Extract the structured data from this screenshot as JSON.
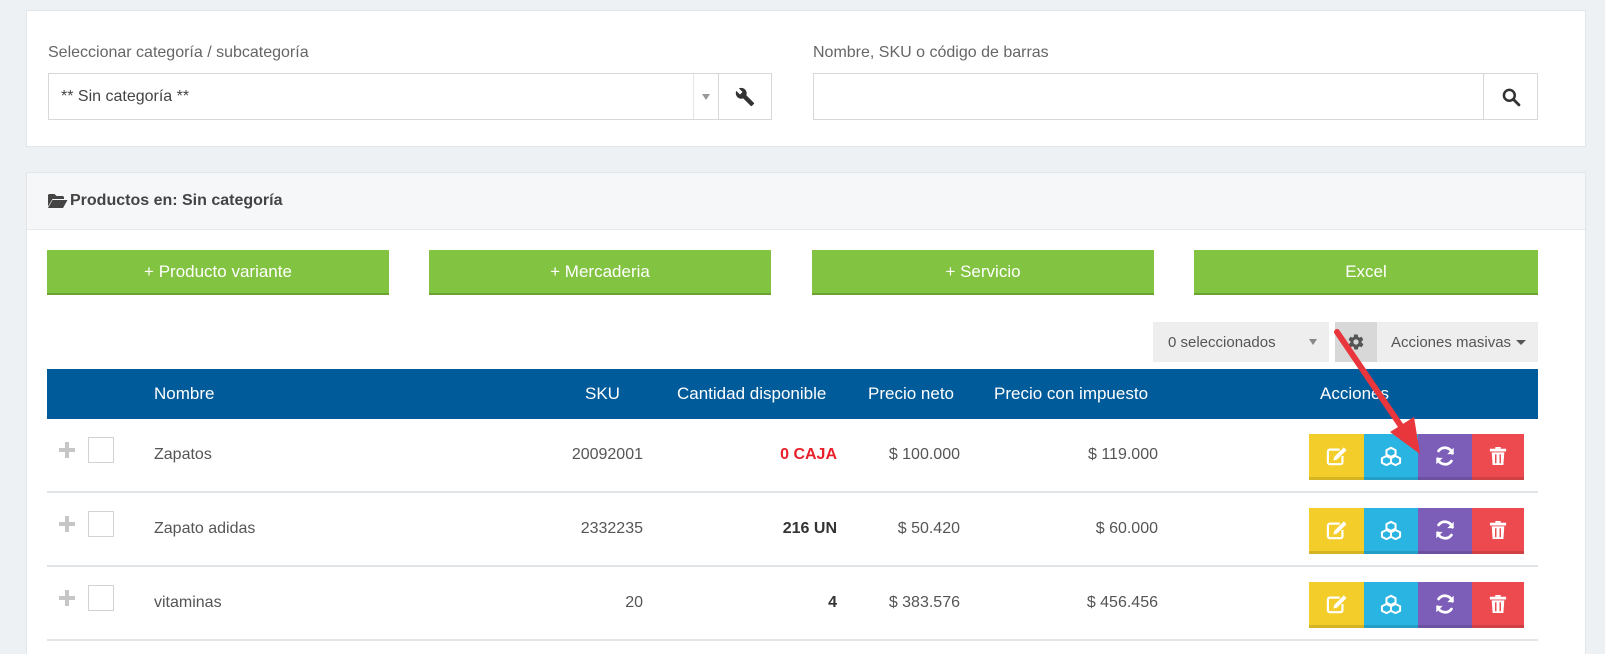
{
  "filters": {
    "category_label": "Seleccionar categoría / subcategoría",
    "category_selected": "** Sin categoría **",
    "search_label": "Nombre, SKU o código de barras",
    "search_value": "",
    "search_placeholder": ""
  },
  "panel": {
    "title": "Productos en: Sin categoría"
  },
  "buttons": {
    "variant_product": "+ Producto variante",
    "merchandise": "+ Mercaderia",
    "service": "+ Servicio",
    "excel": "Excel"
  },
  "bulk": {
    "selected_count": "0 seleccionados",
    "mass_actions": "Acciones masivas"
  },
  "table": {
    "headers": {
      "name": "Nombre",
      "sku": "SKU",
      "qty": "Cantidad disponible",
      "net_price": "Precio neto",
      "tax_price": "Precio con impuesto",
      "actions": "Acciones"
    },
    "rows": [
      {
        "name": "Zapatos",
        "sku": "20092001",
        "qty": "0 CAJA",
        "net_price": "$ 100.000",
        "tax_price": "$ 119.000"
      },
      {
        "name": "Zapato adidas",
        "sku": "2332235",
        "qty": "216 UN",
        "net_price": "$ 50.420",
        "tax_price": "$ 60.000"
      },
      {
        "name": "vitaminas",
        "sku": "20",
        "qty": "4",
        "net_price": "$ 383.576",
        "tax_price": "$ 456.456"
      }
    ]
  },
  "colors": {
    "green": "#82c341",
    "header_blue": "#005b9a",
    "edit_yellow": "#f3cd2a",
    "variant_cyan": "#2ab4e2",
    "sync_purple": "#7c5db8",
    "delete_red": "#ec4a4f",
    "annotation_arrow": "#e8363c",
    "stock_zero": "#e8202a"
  },
  "icons": {
    "wrench": "wrench-icon",
    "search": "search-icon",
    "folder": "folder-open-icon",
    "gear": "gear-icon",
    "edit": "edit-icon",
    "variants": "cubes-icon",
    "sync": "refresh-icon",
    "delete": "trash-icon"
  }
}
